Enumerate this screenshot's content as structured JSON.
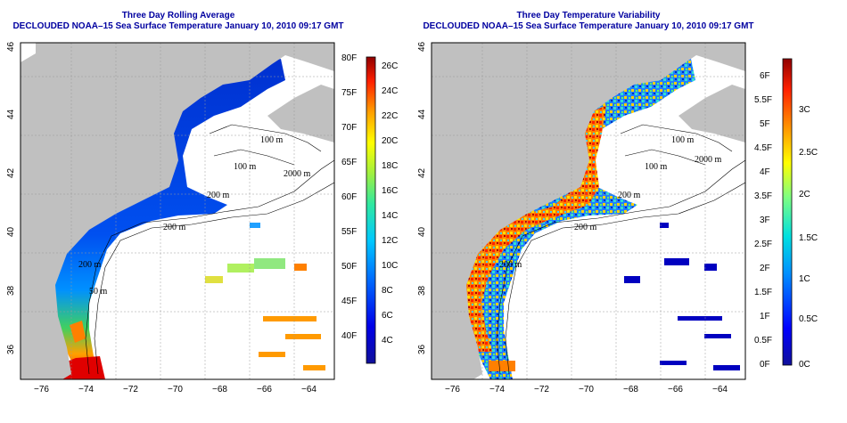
{
  "left_panel": {
    "title_line1": "Three Day Rolling Average",
    "title_line2": "DECLOUDED NOAA–15 Sea Surface Temperature January 10, 2010 09:17 GMT",
    "x_ticks": [
      "−76",
      "−74",
      "−72",
      "−70",
      "−68",
      "−66",
      "−64"
    ],
    "y_ticks": [
      "36",
      "38",
      "40",
      "42",
      "44",
      "46"
    ],
    "contour_labels": [
      "100 m",
      "100 m",
      "2000 m",
      "200 m",
      "200 m",
      "200 m",
      "50 m"
    ],
    "colorbar_f": [
      "40F",
      "45F",
      "50F",
      "55F",
      "60F",
      "65F",
      "70F",
      "75F",
      "80F"
    ],
    "colorbar_c": [
      "4C",
      "6C",
      "8C",
      "10C",
      "12C",
      "14C",
      "16C",
      "18C",
      "20C",
      "22C",
      "24C",
      "26C"
    ]
  },
  "right_panel": {
    "title_line1": "Three Day Temperature Variability",
    "title_line2": "DECLOUDED NOAA–15 Sea Surface Temperature January 10, 2010 09:17 GMT",
    "x_ticks": [
      "−76",
      "−74",
      "−72",
      "−70",
      "−68",
      "−66",
      "−64"
    ],
    "y_ticks": [
      "36",
      "38",
      "40",
      "42",
      "44",
      "46"
    ],
    "contour_labels": [
      "100 m",
      "100 m",
      "2000 m",
      "200 m",
      "200 m",
      "200 m"
    ],
    "colorbar_f": [
      "0F",
      "0.5F",
      "1F",
      "1.5F",
      "2F",
      "2.5F",
      "3F",
      "3.5F",
      "4F",
      "4.5F",
      "5F",
      "5.5F",
      "6F"
    ],
    "colorbar_c": [
      "0C",
      "0.5C",
      "1C",
      "1.5C",
      "2C",
      "2.5C",
      "3C"
    ]
  },
  "colors": {
    "land": "#c0c0c0",
    "title": "#0000a0"
  }
}
